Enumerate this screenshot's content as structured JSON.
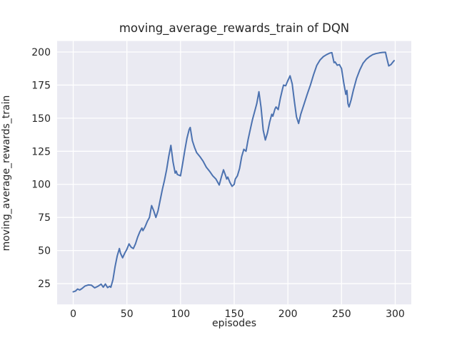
{
  "chart_data": {
    "type": "line",
    "title": "moving_average_rewards_train of DQN",
    "xlabel": "episodes",
    "ylabel": "moving_average_rewards_train",
    "x_ticks": [
      0,
      50,
      100,
      150,
      200,
      250,
      300
    ],
    "y_ticks": [
      25,
      50,
      75,
      100,
      125,
      150,
      175,
      200
    ],
    "xlim": [
      -15,
      315
    ],
    "ylim": [
      9.3,
      208.3
    ],
    "grid": true,
    "legend": "none",
    "style": "seaborn-darkgrid",
    "colors": {
      "line": "#4C72B0",
      "axes_background": "#EAEAF2",
      "gridline": "#FFFFFF",
      "text": "#262626",
      "figure_background": "#FFFFFF"
    },
    "series": [
      {
        "name": "moving_average_rewards_train",
        "points": [
          [
            0,
            18.8
          ],
          [
            2,
            19.3
          ],
          [
            4,
            20.9
          ],
          [
            6,
            20.2
          ],
          [
            8,
            21.2
          ],
          [
            11,
            23.2
          ],
          [
            14,
            24
          ],
          [
            17,
            23.8
          ],
          [
            20,
            21.8
          ],
          [
            23,
            23
          ],
          [
            26,
            24.6
          ],
          [
            28,
            22.3
          ],
          [
            30,
            24.7
          ],
          [
            32,
            22
          ],
          [
            34,
            23
          ],
          [
            35,
            22.2
          ],
          [
            37,
            28
          ],
          [
            39,
            38
          ],
          [
            41,
            46
          ],
          [
            43,
            51.5
          ],
          [
            44,
            48
          ],
          [
            46,
            44.5
          ],
          [
            48,
            48
          ],
          [
            50,
            51
          ],
          [
            52,
            55
          ],
          [
            54,
            52.5
          ],
          [
            56,
            51.5
          ],
          [
            58,
            55
          ],
          [
            60,
            60
          ],
          [
            62,
            64
          ],
          [
            64,
            67
          ],
          [
            65,
            65
          ],
          [
            67,
            68
          ],
          [
            69,
            72
          ],
          [
            71,
            75
          ],
          [
            73,
            84
          ],
          [
            75,
            80
          ],
          [
            77,
            75
          ],
          [
            79,
            80
          ],
          [
            81,
            88
          ],
          [
            83,
            96
          ],
          [
            85,
            103
          ],
          [
            87,
            111
          ],
          [
            89,
            121
          ],
          [
            91,
            129.5
          ],
          [
            93,
            117
          ],
          [
            95,
            108.5
          ],
          [
            96,
            110
          ],
          [
            97,
            107.5
          ],
          [
            99,
            106.8
          ],
          [
            100,
            106.5
          ],
          [
            102,
            116
          ],
          [
            104,
            126
          ],
          [
            106,
            135
          ],
          [
            108,
            141.5
          ],
          [
            109,
            143
          ],
          [
            111,
            133
          ],
          [
            113,
            128
          ],
          [
            115,
            124
          ],
          [
            118,
            121
          ],
          [
            121,
            117.5
          ],
          [
            124,
            113
          ],
          [
            127,
            110
          ],
          [
            130,
            106.5
          ],
          [
            133,
            104
          ],
          [
            135,
            101
          ],
          [
            136,
            99.5
          ],
          [
            138,
            105.5
          ],
          [
            140,
            111
          ],
          [
            142,
            106.5
          ],
          [
            143,
            104
          ],
          [
            144,
            105.5
          ],
          [
            146,
            101.5
          ],
          [
            148,
            98.5
          ],
          [
            150,
            100
          ],
          [
            151,
            104
          ],
          [
            153,
            106.5
          ],
          [
            155,
            112
          ],
          [
            157,
            121
          ],
          [
            159,
            126.5
          ],
          [
            161,
            125
          ],
          [
            163,
            134
          ],
          [
            165,
            141.5
          ],
          [
            167,
            149
          ],
          [
            169,
            155
          ],
          [
            171,
            161
          ],
          [
            173,
            170
          ],
          [
            175,
            158
          ],
          [
            177,
            141
          ],
          [
            179,
            133.5
          ],
          [
            181,
            139
          ],
          [
            183,
            147
          ],
          [
            185,
            153
          ],
          [
            186,
            151.5
          ],
          [
            188,
            157
          ],
          [
            189,
            158.5
          ],
          [
            191,
            156.5
          ],
          [
            193,
            165
          ],
          [
            195,
            172
          ],
          [
            196,
            175
          ],
          [
            198,
            174.5
          ],
          [
            200,
            178.5
          ],
          [
            202,
            182
          ],
          [
            204,
            176
          ],
          [
            206,
            163
          ],
          [
            208,
            151
          ],
          [
            210,
            146
          ],
          [
            212,
            153
          ],
          [
            215,
            160.5
          ],
          [
            218,
            168
          ],
          [
            221,
            175
          ],
          [
            224,
            183
          ],
          [
            227,
            190
          ],
          [
            230,
            194
          ],
          [
            233,
            196.5
          ],
          [
            236,
            198
          ],
          [
            239,
            199.2
          ],
          [
            241,
            199.5
          ],
          [
            243,
            192
          ],
          [
            244,
            192.5
          ],
          [
            246,
            190
          ],
          [
            248,
            190.5
          ],
          [
            250,
            187.5
          ],
          [
            252,
            177
          ],
          [
            254,
            168
          ],
          [
            255,
            171
          ],
          [
            256,
            161
          ],
          [
            257,
            158.5
          ],
          [
            259,
            164
          ],
          [
            261,
            171
          ],
          [
            264,
            180
          ],
          [
            267,
            186.5
          ],
          [
            270,
            191.5
          ],
          [
            273,
            194.5
          ],
          [
            276,
            196.5
          ],
          [
            279,
            198
          ],
          [
            282,
            198.8
          ],
          [
            285,
            199.3
          ],
          [
            288,
            199.7
          ],
          [
            291,
            199.8
          ],
          [
            292,
            196
          ],
          [
            294,
            189.5
          ],
          [
            296,
            190.5
          ],
          [
            298,
            192.5
          ],
          [
            299,
            193.5
          ]
        ]
      }
    ]
  }
}
